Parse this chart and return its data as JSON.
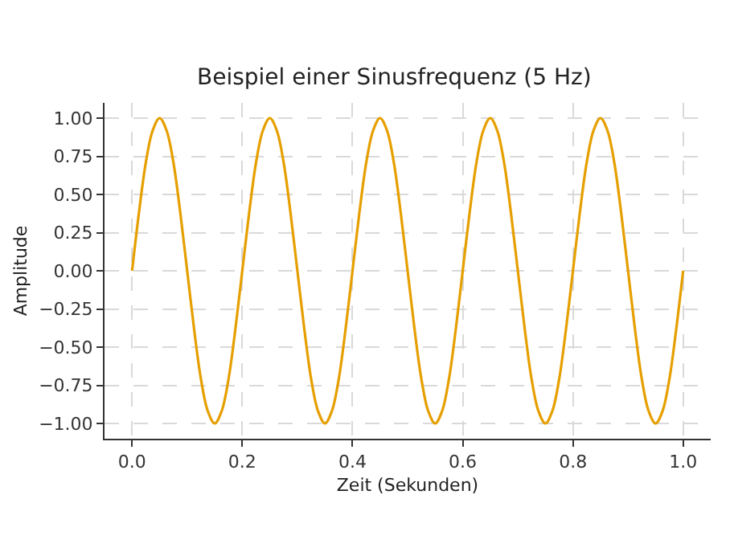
{
  "chart_data": {
    "type": "line",
    "title": "Beispiel einer Sinusfrequenz (5 Hz)",
    "xlabel": "Zeit (Sekunden)",
    "ylabel": "Amplitude",
    "x": [
      0,
      0.0125,
      0.025,
      0.0375,
      0.05,
      0.0625,
      0.075,
      0.0875,
      0.1,
      0.1125,
      0.125,
      0.1375,
      0.15,
      0.1625,
      0.175,
      0.1875,
      0.2,
      0.2125,
      0.225,
      0.2375,
      0.25,
      0.2625,
      0.275,
      0.2875,
      0.3,
      0.3125,
      0.325,
      0.3375,
      0.35,
      0.3625,
      0.375,
      0.3875,
      0.4,
      0.4125,
      0.425,
      0.4375,
      0.45,
      0.4625,
      0.475,
      0.4875,
      0.5,
      0.5125,
      0.525,
      0.5375,
      0.55,
      0.5625,
      0.575,
      0.5875,
      0.6,
      0.6125,
      0.625,
      0.6375,
      0.65,
      0.6625,
      0.675,
      0.6875,
      0.7,
      0.7125,
      0.725,
      0.7375,
      0.75,
      0.7625,
      0.775,
      0.7875,
      0.8,
      0.8125,
      0.825,
      0.8375,
      0.85,
      0.8625,
      0.875,
      0.8875,
      0.9,
      0.9125,
      0.925,
      0.9375,
      0.95,
      0.9625,
      0.975,
      0.9875,
      1.0
    ],
    "series": [
      {
        "color": "#e69f00",
        "values": [
          0,
          0.38,
          0.71,
          0.92,
          1,
          0.92,
          0.71,
          0.38,
          0,
          -0.38,
          -0.71,
          -0.92,
          -1,
          -0.92,
          -0.71,
          -0.38,
          0,
          0.38,
          0.71,
          0.92,
          1,
          0.92,
          0.71,
          0.38,
          0,
          -0.38,
          -0.71,
          -0.92,
          -1,
          -0.92,
          -0.71,
          -0.38,
          0,
          0.38,
          0.71,
          0.92,
          1,
          0.92,
          0.71,
          0.38,
          0,
          -0.38,
          -0.71,
          -0.92,
          -1,
          -0.92,
          -0.71,
          -0.38,
          0,
          0.38,
          0.71,
          0.92,
          1,
          0.92,
          0.71,
          0.38,
          0,
          -0.38,
          -0.71,
          -0.92,
          -1,
          -0.92,
          -0.71,
          -0.38,
          0,
          0.38,
          0.71,
          0.92,
          1,
          0.92,
          0.71,
          0.38,
          0,
          -0.38,
          -0.71,
          -0.92,
          -1,
          -0.92,
          -0.71,
          -0.38,
          0
        ]
      }
    ],
    "xlim": [
      -0.05,
      1.05
    ],
    "ylim": [
      -1.1,
      1.1
    ],
    "xticks": [
      {
        "value": 0,
        "label": "0.0"
      },
      {
        "value": 0.2,
        "label": "0.2"
      },
      {
        "value": 0.4,
        "label": "0.4"
      },
      {
        "value": 0.6,
        "label": "0.6"
      },
      {
        "value": 0.8,
        "label": "0.8"
      },
      {
        "value": 1,
        "label": "1.0"
      }
    ],
    "yticks": [
      {
        "value": -1,
        "label": "−1.00"
      },
      {
        "value": -0.75,
        "label": "−0.75"
      },
      {
        "value": -0.5,
        "label": "−0.50"
      },
      {
        "value": -0.25,
        "label": "−0.25"
      },
      {
        "value": 0,
        "label": "0.00"
      },
      {
        "value": 0.25,
        "label": "0.25"
      },
      {
        "value": 0.5,
        "label": "0.50"
      },
      {
        "value": 0.75,
        "label": "0.75"
      },
      {
        "value": 1,
        "label": "1.00"
      }
    ],
    "grid": true,
    "marker": "none",
    "line_style": "solid"
  }
}
